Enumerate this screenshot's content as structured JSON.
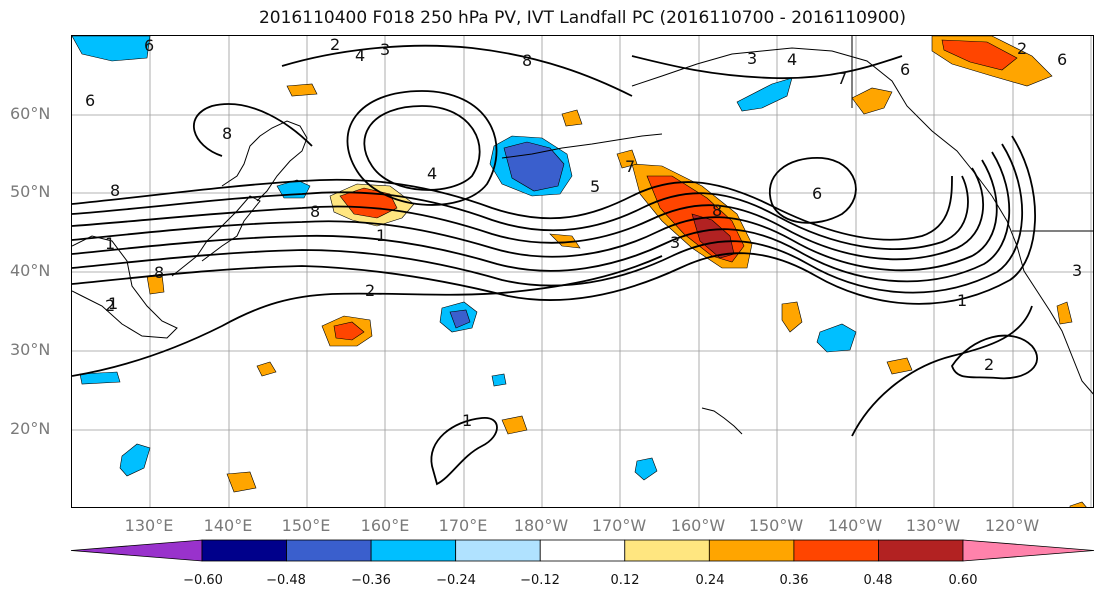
{
  "title": "2016110400 F018 250 hPa PV, IVT Landfall PC (2016110700 - 2016110900)",
  "lat_labels": [
    "60°N",
    "50°N",
    "40°N",
    "30°N",
    "20°N"
  ],
  "lon_labels": [
    "130°E",
    "140°E",
    "150°E",
    "160°E",
    "170°E",
    "180°W",
    "170°W",
    "160°W",
    "150°W",
    "140°W",
    "130°W",
    "120°W"
  ],
  "colorbar": {
    "ticks": [
      "−0.60",
      "−0.48",
      "−0.36",
      "−0.24",
      "−0.12",
      "0.12",
      "0.24",
      "0.36",
      "0.48",
      "0.60"
    ],
    "colors": [
      "#9932cc",
      "#00008b",
      "#3a5fcd",
      "#00bfff",
      "#b0e2ff",
      "#ffffff",
      "#ffe680",
      "#ffa500",
      "#ff4500",
      "#b22222",
      "#ff82ab"
    ]
  },
  "contour_labels": [
    "2",
    "4",
    "3",
    "6",
    "8",
    "8",
    "6",
    "3",
    "4",
    "7",
    "6",
    "2",
    "6",
    "8",
    "8",
    "4",
    "5",
    "7",
    "8",
    "1",
    "2",
    "8",
    "1",
    "1",
    "2",
    "3",
    "6",
    "1",
    "2",
    "1",
    "3"
  ],
  "chart_data": {
    "type": "map",
    "projection": "equirectangular",
    "lon_range": [
      121,
      253
    ],
    "lat_range": [
      10,
      70
    ],
    "field_contours": "250 hPa PV (PVU)",
    "field_shading": "IVT Landfall PC",
    "contour_levels": [
      1,
      2,
      3,
      4,
      5,
      6,
      7,
      8
    ],
    "shading_levels": [
      -0.6,
      -0.48,
      -0.36,
      -0.24,
      -0.12,
      0.12,
      0.24,
      0.36,
      0.48,
      0.6
    ],
    "grid": true
  }
}
